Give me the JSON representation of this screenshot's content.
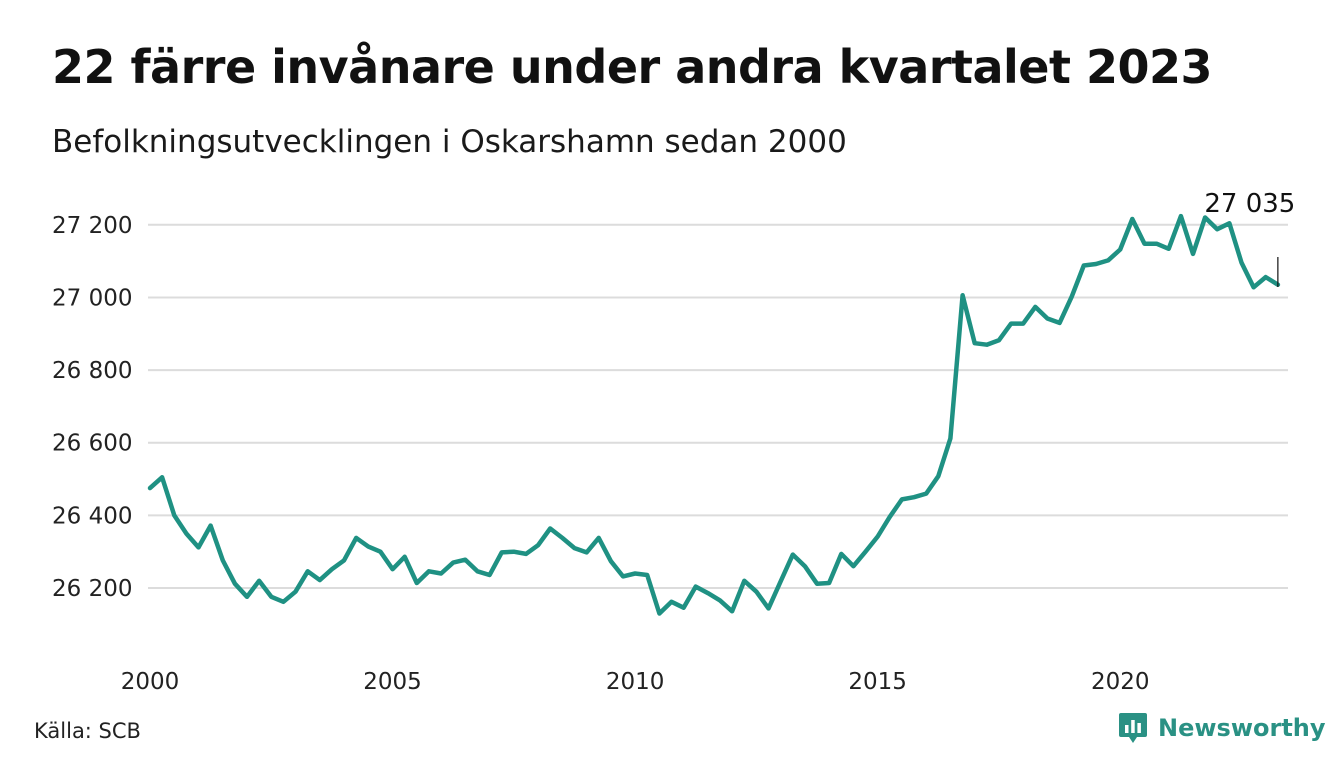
{
  "title": "22 färre invånare under andra kvartalet 2023",
  "subtitle": "Befolkningsutvecklingen i Oskarshamn sedan 2000",
  "source": "Källa: SCB",
  "brand": {
    "name": "Newsworthy",
    "icon": "newsworthy-logo-icon",
    "color": "#2a9184"
  },
  "chart_data": {
    "type": "line",
    "title": "22 färre invånare under andra kvartalet 2023",
    "subtitle": "Befolkningsutvecklingen i Oskarshamn sedan 2000",
    "xlabel": "",
    "ylabel": "",
    "xlim": [
      2000,
      2023.5
    ],
    "ylim": [
      26090,
      27260
    ],
    "x_ticks": [
      2000,
      2005,
      2010,
      2015,
      2020
    ],
    "y_ticks": [
      26200,
      26400,
      26600,
      26800,
      27000,
      27200
    ],
    "y_tick_labels": [
      "26 200",
      "26 400",
      "26 600",
      "26 800",
      "27 000",
      "27 200"
    ],
    "grid": true,
    "line_color": "#1f9183",
    "annotation": {
      "label": "27 035",
      "x": 2023.25,
      "y": 27035
    },
    "series": [
      {
        "x": [
          2000.0,
          2000.25,
          2000.5,
          2000.75,
          2001.0,
          2001.25,
          2001.5,
          2001.75,
          2002.0,
          2002.25,
          2002.5,
          2002.75,
          2003.0,
          2003.25,
          2003.5,
          2003.75,
          2004.0,
          2004.25,
          2004.5,
          2004.75,
          2005.0,
          2005.25,
          2005.5,
          2005.75,
          2006.0,
          2006.25,
          2006.5,
          2006.75,
          2007.0,
          2007.25,
          2007.5,
          2007.75,
          2008.0,
          2008.25,
          2008.5,
          2008.75,
          2009.0,
          2009.25,
          2009.5,
          2009.75,
          2010.0,
          2010.25,
          2010.5,
          2010.75,
          2011.0,
          2011.25,
          2011.5,
          2011.75,
          2012.0,
          2012.25,
          2012.5,
          2012.75,
          2013.0,
          2013.25,
          2013.5,
          2013.75,
          2014.0,
          2014.25,
          2014.5,
          2014.75,
          2015.0,
          2015.25,
          2015.5,
          2015.75,
          2016.0,
          2016.25,
          2016.5,
          2016.75,
          2017.0,
          2017.25,
          2017.5,
          2017.75,
          2018.0,
          2018.25,
          2018.5,
          2018.75,
          2019.0,
          2019.25,
          2019.5,
          2019.75,
          2020.0,
          2020.25,
          2020.5,
          2020.75,
          2021.0,
          2021.25,
          2021.5,
          2021.75,
          2022.0,
          2022.25,
          2022.5,
          2022.75,
          2023.0,
          2023.25
        ],
        "y": [
          26475,
          26505,
          26400,
          26350,
          26312,
          26372,
          26276,
          26212,
          26176,
          26220,
          26176,
          26162,
          26190,
          26246,
          26222,
          26252,
          26276,
          26338,
          26314,
          26300,
          26252,
          26286,
          26214,
          26246,
          26240,
          26270,
          26278,
          26246,
          26236,
          26298,
          26300,
          26294,
          26318,
          26364,
          26338,
          26310,
          26298,
          26338,
          26274,
          26232,
          26240,
          26236,
          26130,
          26162,
          26146,
          26204,
          26186,
          26166,
          26136,
          26220,
          26190,
          26144,
          26218,
          26292,
          26260,
          26212,
          26214,
          26294,
          26260,
          26300,
          26342,
          26396,
          26444,
          26450,
          26460,
          26508,
          26612,
          27006,
          26874,
          26870,
          26882,
          26928,
          26928,
          26974,
          26942,
          26930,
          27002,
          27088,
          27092,
          27102,
          27132,
          27216,
          27148,
          27148,
          27134,
          27224,
          27120,
          27220,
          27188,
          27204,
          27096,
          27028,
          27056,
          27035
        ]
      }
    ]
  }
}
